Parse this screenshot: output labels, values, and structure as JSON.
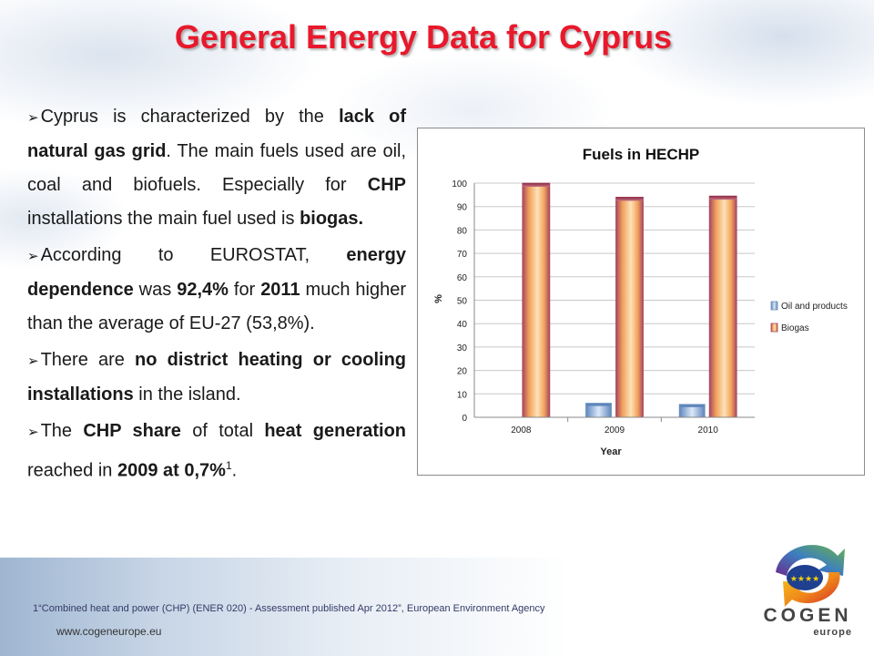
{
  "slide": {
    "title": "General Energy Data for Cyprus",
    "paragraphs": [
      [
        {
          "t": "Cyprus is characterized by the "
        },
        {
          "t": "lack of  natural gas grid",
          "b": true
        },
        {
          "t": ". The main fuels used are oil, coal and biofuels. Especially for "
        },
        {
          "t": "CHP",
          "b": true
        },
        {
          "t": " installations the main fuel used is "
        },
        {
          "t": "biogas.",
          "b": true
        }
      ],
      [
        {
          "t": "According to EUROSTAT, "
        },
        {
          "t": "energy dependence",
          "b": true
        },
        {
          "t": " was "
        },
        {
          "t": "92,4%",
          "b": true
        },
        {
          "t": " for "
        },
        {
          "t": "2011",
          "b": true
        },
        {
          "t": " much higher than the average of EU-27 (53,8%)."
        }
      ],
      [
        {
          "t": "There are "
        },
        {
          "t": "no district heating or cooling installations",
          "b": true
        },
        {
          "t": " in the island."
        }
      ],
      [
        {
          "t": "The "
        },
        {
          "t": "CHP share",
          "b": true
        },
        {
          "t": " of total "
        },
        {
          "t": "heat generation",
          "b": true
        },
        {
          "t": " reached in "
        },
        {
          "t": "2009 at 0,7%",
          "b": true
        },
        {
          "t": "1",
          "sup": true
        },
        {
          "t": "."
        }
      ]
    ],
    "footnote": "1“Combined heat and power (CHP) (ENER 020) - Assessment published Apr 2012”, European Environment Agency",
    "url": "www.cogeneurope.eu",
    "logo": {
      "main": "COGEN",
      "sub": "europe"
    }
  },
  "colors": {
    "title": "#e8192c",
    "oil_series": "#8fb4e3",
    "biogas_series": "#f6b96a",
    "biogas_edge": "#a84660"
  },
  "chart_data": {
    "type": "bar",
    "title": "Fuels in HECHP",
    "xlabel": "Year",
    "ylabel": "%",
    "categories": [
      "2008",
      "2009",
      "2010"
    ],
    "ylim": [
      0,
      100
    ],
    "yticks": [
      "0",
      "10",
      "20",
      "30",
      "40",
      "50",
      "60",
      "70",
      "80",
      "90",
      "100"
    ],
    "grid": true,
    "legend_position": "right",
    "series": [
      {
        "name": "Oil and products",
        "values": [
          0,
          6,
          5.5
        ]
      },
      {
        "name": "Biogas",
        "values": [
          100,
          94,
          94.5
        ]
      }
    ]
  }
}
